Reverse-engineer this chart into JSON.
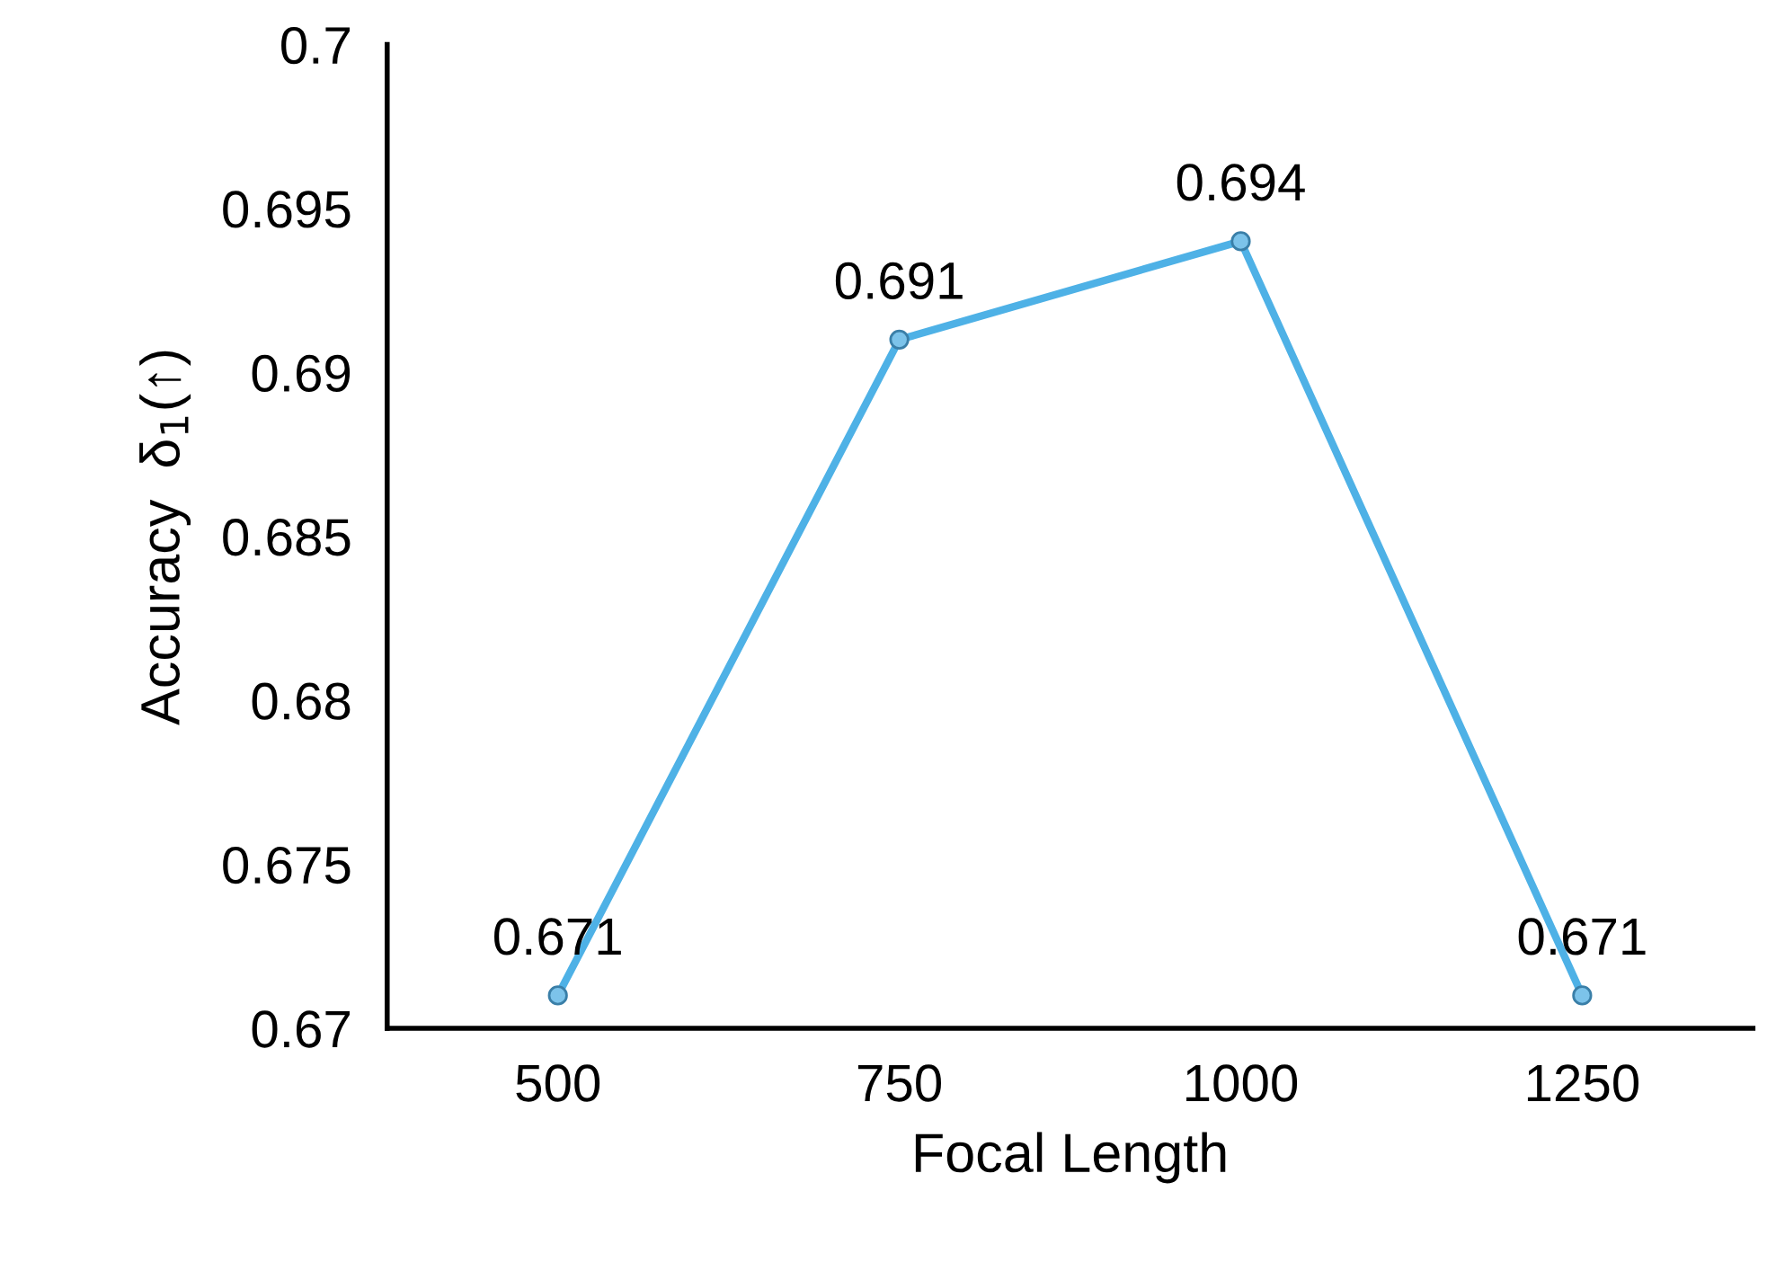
{
  "chart_data": {
    "type": "line",
    "xlabel": "Focal Length",
    "ylabel": "Accuracy  δ$_{1}$(↑)",
    "categories": [
      "500",
      "750",
      "1000",
      "1250"
    ],
    "series": [
      {
        "color": "#4eb1e6",
        "values": [
          0.671,
          0.691,
          0.694,
          0.671
        ]
      }
    ],
    "ylim": [
      0.67,
      0.7
    ],
    "yticks": [
      0.67,
      0.675,
      0.68,
      0.685,
      0.69,
      0.695,
      0.7
    ],
    "data_labels": true,
    "marker": "circle",
    "line_style": "solid",
    "grid": false,
    "legend": false
  }
}
